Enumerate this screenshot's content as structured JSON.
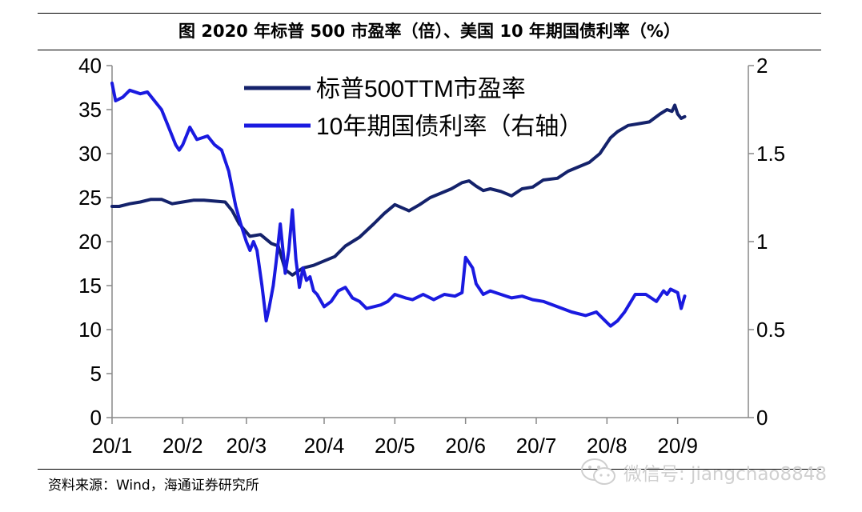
{
  "title": "图  2020 年标普 500 市盈率（倍）、美国 10 年期国债利率（%）",
  "source": "资料来源：Wind，海通证券研究所",
  "watermark": "微信号: jiangchao8848",
  "colors": {
    "pe_series": "#14226b",
    "yield_series": "#1a1ae0",
    "axis": "#888888"
  },
  "chart_data": {
    "type": "line",
    "title": "图  2020 年标普 500 市盈率（倍）、美国 10 年期国债利率（%）",
    "x_tick_labels": [
      "20/1",
      "20/2",
      "20/3",
      "20/4",
      "20/5",
      "20/6",
      "20/7",
      "20/8",
      "20/9"
    ],
    "x_tick_values": [
      1.0,
      2.0,
      2.9,
      4.0,
      5.0,
      6.0,
      7.0,
      8.0,
      9.0
    ],
    "xlim": [
      1.0,
      10.0
    ],
    "left_axis": {
      "ylim": [
        0,
        40
      ],
      "ticks": [
        0,
        5,
        10,
        15,
        20,
        25,
        30,
        35,
        40
      ],
      "tick_labels": [
        "0",
        "5",
        "10",
        "15",
        "20",
        "25",
        "30",
        "35",
        "40"
      ]
    },
    "right_axis": {
      "ylim": [
        0,
        2
      ],
      "ticks": [
        0,
        0.5,
        1,
        1.5,
        2
      ],
      "tick_labels": [
        "0",
        "0.5",
        "1",
        "1.5",
        "2"
      ]
    },
    "legend": {
      "placement": "top-center"
    },
    "series": [
      {
        "name": "标普500TTM市盈率",
        "axis": "left",
        "x": [
          1.0,
          1.1,
          1.25,
          1.4,
          1.55,
          1.7,
          1.85,
          2.0,
          2.15,
          2.3,
          2.45,
          2.6,
          2.7,
          2.8,
          2.95,
          3.1,
          3.25,
          3.35,
          3.45,
          3.55,
          3.7,
          3.85,
          4.0,
          4.15,
          4.3,
          4.5,
          4.7,
          4.85,
          5.0,
          5.2,
          5.35,
          5.5,
          5.65,
          5.8,
          5.95,
          6.05,
          6.15,
          6.25,
          6.35,
          6.5,
          6.65,
          6.8,
          6.95,
          7.1,
          7.3,
          7.45,
          7.6,
          7.75,
          7.9,
          8.05,
          8.15,
          8.3,
          8.45,
          8.6,
          8.75,
          8.85,
          8.92,
          8.96,
          9.0,
          9.05,
          9.1
        ],
        "values": [
          24.0,
          24.0,
          24.3,
          24.5,
          24.8,
          24.8,
          24.3,
          24.5,
          24.7,
          24.7,
          24.6,
          24.5,
          23.5,
          22.0,
          20.6,
          20.8,
          19.8,
          19.5,
          16.8,
          16.2,
          17.0,
          17.3,
          17.8,
          18.3,
          19.5,
          20.5,
          22.0,
          23.2,
          24.2,
          23.5,
          24.2,
          25.0,
          25.5,
          26.0,
          26.7,
          26.9,
          26.3,
          25.8,
          26.0,
          25.7,
          25.2,
          26.0,
          26.2,
          27.0,
          27.2,
          28.0,
          28.5,
          29.0,
          30.0,
          31.8,
          32.5,
          33.2,
          33.4,
          33.6,
          34.5,
          35.0,
          34.8,
          35.5,
          34.5,
          34.0,
          34.2
        ]
      },
      {
        "name": "10年期国债利率（右轴）",
        "axis": "right",
        "x": [
          1.0,
          1.05,
          1.15,
          1.25,
          1.4,
          1.5,
          1.6,
          1.7,
          1.8,
          1.9,
          1.95,
          2.0,
          2.05,
          2.1,
          2.2,
          2.35,
          2.45,
          2.55,
          2.65,
          2.75,
          2.82,
          2.9,
          2.95,
          3.0,
          3.05,
          3.12,
          3.18,
          3.22,
          3.28,
          3.32,
          3.38,
          3.45,
          3.5,
          3.55,
          3.6,
          3.65,
          3.7,
          3.75,
          3.8,
          3.85,
          3.9,
          4.0,
          4.1,
          4.2,
          4.3,
          4.4,
          4.5,
          4.6,
          4.7,
          4.8,
          4.9,
          5.0,
          5.15,
          5.25,
          5.4,
          5.55,
          5.7,
          5.85,
          5.95,
          6.0,
          6.05,
          6.1,
          6.15,
          6.25,
          6.35,
          6.5,
          6.65,
          6.8,
          6.95,
          7.1,
          7.3,
          7.5,
          7.7,
          7.85,
          7.95,
          8.05,
          8.15,
          8.25,
          8.4,
          8.55,
          8.7,
          8.8,
          8.85,
          8.9,
          9.0,
          9.05,
          9.1
        ],
        "values": [
          1.9,
          1.8,
          1.82,
          1.86,
          1.84,
          1.85,
          1.8,
          1.75,
          1.65,
          1.55,
          1.52,
          1.55,
          1.6,
          1.65,
          1.58,
          1.6,
          1.55,
          1.52,
          1.4,
          1.2,
          1.1,
          1.0,
          0.95,
          1.0,
          0.95,
          0.75,
          0.55,
          0.62,
          0.75,
          0.88,
          1.1,
          0.82,
          0.95,
          1.18,
          0.9,
          0.74,
          0.85,
          0.78,
          0.8,
          0.72,
          0.7,
          0.63,
          0.66,
          0.72,
          0.74,
          0.68,
          0.66,
          0.62,
          0.63,
          0.64,
          0.66,
          0.7,
          0.68,
          0.67,
          0.7,
          0.67,
          0.7,
          0.69,
          0.71,
          0.91,
          0.88,
          0.85,
          0.76,
          0.7,
          0.72,
          0.7,
          0.68,
          0.69,
          0.67,
          0.66,
          0.63,
          0.6,
          0.58,
          0.6,
          0.56,
          0.52,
          0.55,
          0.6,
          0.7,
          0.7,
          0.66,
          0.72,
          0.7,
          0.73,
          0.71,
          0.62,
          0.69
        ]
      }
    ]
  }
}
